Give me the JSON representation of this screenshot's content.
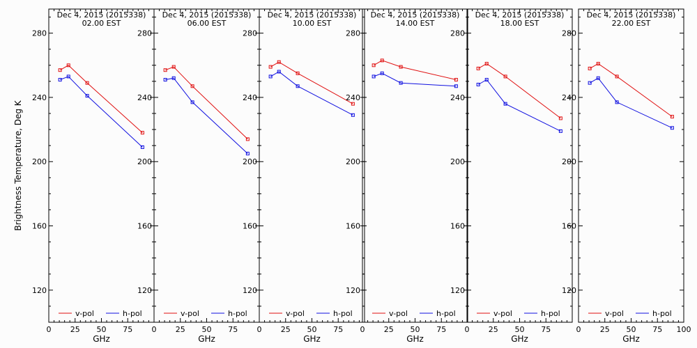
{
  "figure": {
    "ylabel": "Brightness Temperature, Deg K",
    "xlabel": "GHz",
    "colors": {
      "v": "#e01010",
      "h": "#1010e0",
      "frame": "#000000",
      "background": "#fcfcfc"
    }
  },
  "chart_data": {
    "type": "line",
    "xlim": [
      0,
      100
    ],
    "ylim": [
      100,
      295
    ],
    "yticks": [
      120,
      160,
      200,
      240,
      280
    ],
    "yticklabels": [
      "120",
      "160",
      "200",
      "240",
      "280"
    ],
    "xticks_major": [
      0,
      25,
      50,
      75,
      100
    ],
    "xticklabels": [
      "0",
      "25",
      "50",
      "75",
      "100"
    ],
    "legend": {
      "position": "bottom",
      "v_label": "v-pol",
      "h_label": "h-pol"
    },
    "panels": [
      {
        "title_line1": "Dec  4, 2015 (2015338)",
        "title_line2": "02.00 EST",
        "series": [
          {
            "name": "v-pol",
            "x": [
              10.7,
              18.7,
              36.5,
              89.0
            ],
            "y": [
              257,
              260,
              249,
              218
            ]
          },
          {
            "name": "h-pol",
            "x": [
              10.7,
              18.7,
              36.5,
              89.0
            ],
            "y": [
              251,
              253,
              241,
              209
            ]
          }
        ]
      },
      {
        "title_line1": "Dec  4, 2015 (2015338)",
        "title_line2": "06.00 EST",
        "series": [
          {
            "name": "v-pol",
            "x": [
              10.7,
              18.7,
              36.5,
              89.0
            ],
            "y": [
              257,
              259,
              247,
              214
            ]
          },
          {
            "name": "h-pol",
            "x": [
              10.7,
              18.7,
              36.5,
              89.0
            ],
            "y": [
              251,
              252,
              237,
              205
            ]
          }
        ]
      },
      {
        "title_line1": "Dec  4, 2015 (2015338)",
        "title_line2": "10.00 EST",
        "series": [
          {
            "name": "v-pol",
            "x": [
              10.7,
              18.7,
              36.5,
              89.0
            ],
            "y": [
              259,
              262,
              255,
              236
            ]
          },
          {
            "name": "h-pol",
            "x": [
              10.7,
              18.7,
              36.5,
              89.0
            ],
            "y": [
              253,
              256,
              247,
              229
            ]
          }
        ]
      },
      {
        "title_line1": "Dec  4, 2015 (2015338)",
        "title_line2": "14.00 EST",
        "series": [
          {
            "name": "v-pol",
            "x": [
              10.7,
              18.7,
              36.5,
              89.0
            ],
            "y": [
              260,
              263,
              259,
              251
            ]
          },
          {
            "name": "h-pol",
            "x": [
              10.7,
              18.7,
              36.5,
              89.0
            ],
            "y": [
              253,
              255,
              249,
              247
            ]
          }
        ]
      },
      {
        "title_line1": "Dec  4, 2015 (2015338)",
        "title_line2": "18.00 EST",
        "series": [
          {
            "name": "v-pol",
            "x": [
              10.7,
              18.7,
              36.5,
              89.0
            ],
            "y": [
              258,
              261,
              253,
              227
            ]
          },
          {
            "name": "h-pol",
            "x": [
              10.7,
              18.7,
              36.5,
              89.0
            ],
            "y": [
              248,
              251,
              236,
              219
            ]
          }
        ]
      },
      {
        "title_line1": "Dec  4, 2015 (2015338)",
        "title_line2": "22.00 EST",
        "series": [
          {
            "name": "v-pol",
            "x": [
              10.7,
              18.7,
              36.5,
              89.0
            ],
            "y": [
              258,
              261,
              253,
              228
            ]
          },
          {
            "name": "h-pol",
            "x": [
              10.7,
              18.7,
              36.5,
              89.0
            ],
            "y": [
              249,
              252,
              237,
              221
            ]
          }
        ]
      }
    ]
  }
}
